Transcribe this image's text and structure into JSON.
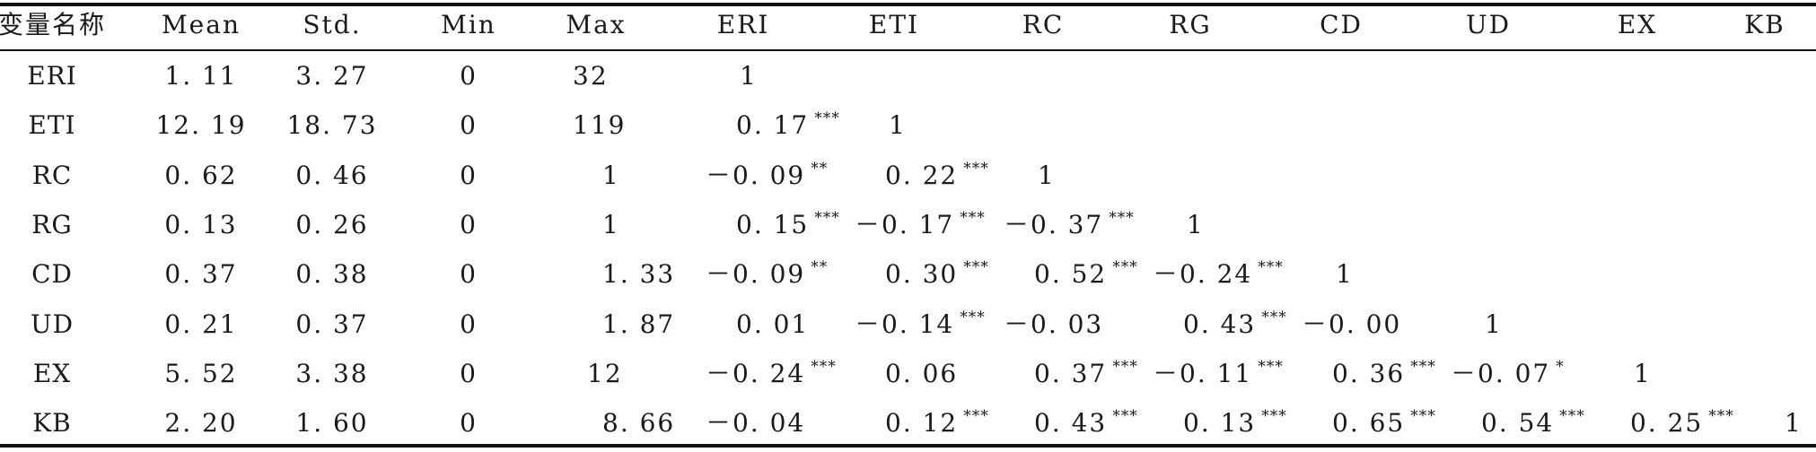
{
  "headers": [
    "变量名称",
    "Mean",
    "Std.",
    "Min",
    "Max",
    "ERI",
    "ETI",
    "RC",
    "RG",
    "CD",
    "UD",
    "EX",
    "KB"
  ],
  "rows": [
    {
      "name": "ERI",
      "stats": [
        "1. 11",
        "3. 27",
        "0",
        "32"
      ],
      "corr": [
        {
          "v": "1",
          "s": ""
        }
      ]
    },
    {
      "name": "ETI",
      "stats": [
        "12. 19",
        "18. 73",
        "0",
        "119"
      ],
      "corr": [
        {
          "v": "0. 17",
          "s": "***"
        },
        {
          "v": "1",
          "s": ""
        }
      ]
    },
    {
      "name": "RC",
      "stats": [
        "0. 62",
        "0. 46",
        "0",
        "1"
      ],
      "corr": [
        {
          "v": "－0. 09",
          "s": "**"
        },
        {
          "v": "0. 22",
          "s": "***"
        },
        {
          "v": "1",
          "s": ""
        }
      ]
    },
    {
      "name": "RG",
      "stats": [
        "0. 13",
        "0. 26",
        "0",
        "1"
      ],
      "corr": [
        {
          "v": "0. 15",
          "s": "***"
        },
        {
          "v": "－0. 17",
          "s": "***"
        },
        {
          "v": "－0. 37",
          "s": "***"
        },
        {
          "v": "1",
          "s": ""
        }
      ]
    },
    {
      "name": "CD",
      "stats": [
        "0. 37",
        "0. 38",
        "0",
        "1. 33"
      ],
      "corr": [
        {
          "v": "－0. 09",
          "s": "**"
        },
        {
          "v": "0. 30",
          "s": "***"
        },
        {
          "v": "0. 52",
          "s": "***"
        },
        {
          "v": "－0. 24",
          "s": "***"
        },
        {
          "v": "1",
          "s": ""
        }
      ]
    },
    {
      "name": "UD",
      "stats": [
        "0. 21",
        "0. 37",
        "0",
        "1. 87"
      ],
      "corr": [
        {
          "v": "0. 01",
          "s": ""
        },
        {
          "v": "－0. 14",
          "s": "***"
        },
        {
          "v": "－0. 03",
          "s": ""
        },
        {
          "v": "0. 43",
          "s": "***"
        },
        {
          "v": "－0. 00",
          "s": ""
        },
        {
          "v": "1",
          "s": ""
        }
      ]
    },
    {
      "name": "EX",
      "stats": [
        "5. 52",
        "3. 38",
        "0",
        "12"
      ],
      "corr": [
        {
          "v": "－0. 24",
          "s": "***"
        },
        {
          "v": "0. 06",
          "s": ""
        },
        {
          "v": "0. 37",
          "s": "***"
        },
        {
          "v": "－0. 11",
          "s": "***"
        },
        {
          "v": "0. 36",
          "s": "***"
        },
        {
          "v": "－0. 07",
          "s": "*"
        },
        {
          "v": "1",
          "s": ""
        }
      ]
    },
    {
      "name": "KB",
      "stats": [
        "2. 20",
        "1. 60",
        "0",
        "8. 66"
      ],
      "corr": [
        {
          "v": "－0. 04",
          "s": ""
        },
        {
          "v": "0. 12",
          "s": "***"
        },
        {
          "v": "0. 43",
          "s": "***"
        },
        {
          "v": "0. 13",
          "s": "***"
        },
        {
          "v": "0. 65",
          "s": "***"
        },
        {
          "v": "0. 54",
          "s": "***"
        },
        {
          "v": "0. 25",
          "s": "***"
        },
        {
          "v": "1",
          "s": ""
        }
      ]
    }
  ]
}
